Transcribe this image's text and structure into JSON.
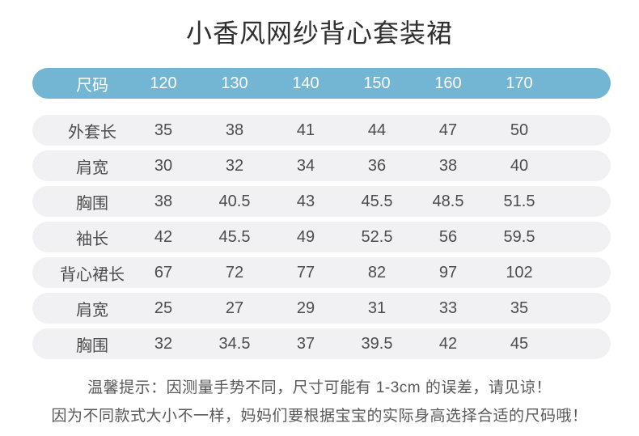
{
  "title": "小香风网纱背心套装裙",
  "table": {
    "header": {
      "label": "尺码",
      "sizes": [
        "120",
        "130",
        "140",
        "150",
        "160",
        "170"
      ]
    },
    "rows": [
      {
        "label": "外套长",
        "values": [
          "35",
          "38",
          "41",
          "44",
          "47",
          "50"
        ]
      },
      {
        "label": "肩宽",
        "values": [
          "30",
          "32",
          "34",
          "36",
          "38",
          "40"
        ]
      },
      {
        "label": "胸围",
        "values": [
          "38",
          "40.5",
          "43",
          "45.5",
          "48.5",
          "51.5"
        ]
      },
      {
        "label": "袖长",
        "values": [
          "42",
          "45.5",
          "49",
          "52.5",
          "56",
          "59.5"
        ]
      },
      {
        "label": "背心裙长",
        "values": [
          "67",
          "72",
          "77",
          "82",
          "97",
          "102"
        ]
      },
      {
        "label": "肩宽",
        "values": [
          "25",
          "27",
          "29",
          "31",
          "33",
          "35"
        ]
      },
      {
        "label": "胸围",
        "values": [
          "32",
          "34.5",
          "37",
          "39.5",
          "42",
          "45"
        ]
      }
    ]
  },
  "footer": {
    "line1": "温馨提示：因测量手势不同，尺寸可能有 1-3cm 的误差，请见谅！",
    "line2": "因为不同款式大小不一样，妈妈们要根据宝宝的实际身高选择合适的尺码哦！"
  },
  "colors": {
    "header_bg": "#72b6d4",
    "header_text": "#ffffff",
    "row_bg": "#f1f1f3",
    "cell_text": "#4c4c4c",
    "title_text": "#2f2f2f",
    "footer_text": "#595959"
  }
}
